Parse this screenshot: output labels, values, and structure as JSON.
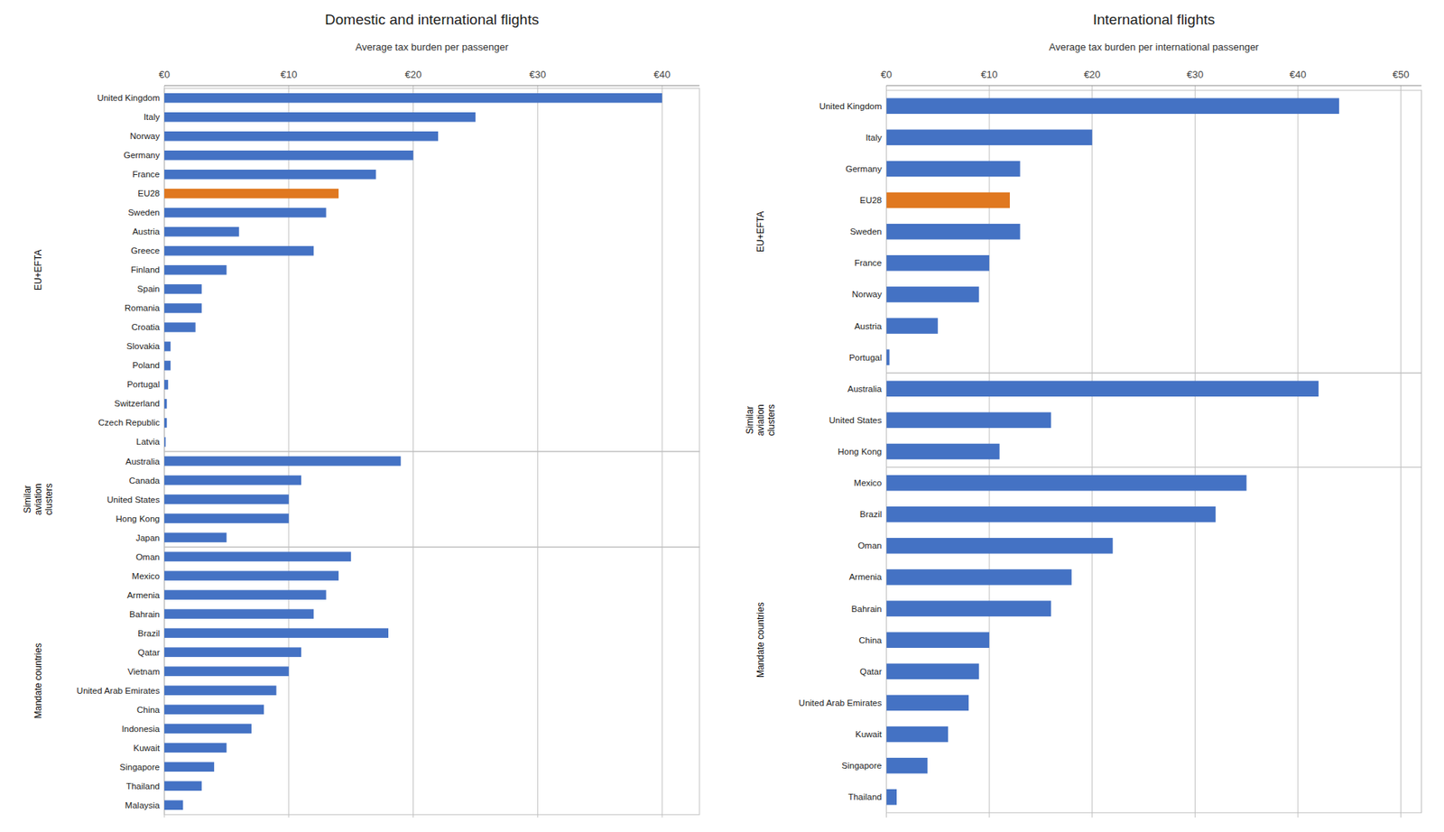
{
  "chart_data": [
    {
      "type": "bar",
      "orientation": "horizontal",
      "grid": true,
      "title": "Domestic and international flights",
      "xlabel": "Average tax burden per passenger",
      "xlim": [
        0,
        43
      ],
      "xticks": [
        {
          "value": 0,
          "label": "€0"
        },
        {
          "value": 10,
          "label": "€10"
        },
        {
          "value": 20,
          "label": "€20"
        },
        {
          "value": 30,
          "label": "€30"
        },
        {
          "value": 40,
          "label": "€40"
        }
      ],
      "categories": [
        "United Kingdom",
        "Italy",
        "Norway",
        "Germany",
        "France",
        "EU28",
        "Sweden",
        "Austria",
        "Greece",
        "Finland",
        "Spain",
        "Romania",
        "Croatia",
        "Slovakia",
        "Poland",
        "Portugal",
        "Switzerland",
        "Czech Republic",
        "Latvia",
        "Australia",
        "Canada",
        "United States",
        "Hong Kong",
        "Japan",
        "Oman",
        "Mexico",
        "Armenia",
        "Bahrain",
        "Brazil",
        "Qatar",
        "Vietnam",
        "United Arab Emirates",
        "China",
        "Indonesia",
        "Kuwait",
        "Singapore",
        "Thailand",
        "Malaysia"
      ],
      "values": [
        40,
        25,
        22,
        20,
        17,
        14,
        13,
        6,
        12,
        5,
        3,
        3,
        2.5,
        0.5,
        0.5,
        0.3,
        0.2,
        0.2,
        0.1,
        19,
        11,
        10,
        10,
        5,
        15,
        14,
        13,
        12,
        18,
        11,
        10,
        9,
        8,
        7,
        5,
        4,
        3,
        1.5
      ],
      "colors": [
        "#4472C4",
        "#4472C4",
        "#4472C4",
        "#4472C4",
        "#4472C4",
        "#E07820",
        "#4472C4",
        "#4472C4",
        "#4472C4",
        "#4472C4",
        "#4472C4",
        "#4472C4",
        "#4472C4",
        "#4472C4",
        "#4472C4",
        "#4472C4",
        "#4472C4",
        "#4472C4",
        "#4472C4",
        "#4472C4",
        "#4472C4",
        "#4472C4",
        "#4472C4",
        "#4472C4",
        "#4472C4",
        "#4472C4",
        "#4472C4",
        "#4472C4",
        "#4472C4",
        "#4472C4",
        "#4472C4",
        "#4472C4",
        "#4472C4",
        "#4472C4",
        "#4472C4",
        "#4472C4",
        "#4472C4",
        "#4472C4"
      ],
      "groups": [
        {
          "label": "EU+EFTA",
          "start": 0,
          "end": 18
        },
        {
          "label": "Similar\naviation\nclusters",
          "start": 19,
          "end": 23
        },
        {
          "label": "Mandate countries",
          "start": 24,
          "end": 37
        }
      ]
    },
    {
      "type": "bar",
      "orientation": "horizontal",
      "grid": true,
      "title": "International flights",
      "xlabel": "Average tax burden per international passenger",
      "xlim": [
        0,
        52
      ],
      "xticks": [
        {
          "value": 0,
          "label": "€0"
        },
        {
          "value": 10,
          "label": "€10"
        },
        {
          "value": 20,
          "label": "€20"
        },
        {
          "value": 30,
          "label": "€30"
        },
        {
          "value": 40,
          "label": "€40"
        },
        {
          "value": 50,
          "label": "€50"
        }
      ],
      "categories": [
        "United Kingdom",
        "Italy",
        "Germany",
        "EU28",
        "Sweden",
        "France",
        "Norway",
        "Austria",
        "Portugal",
        "Australia",
        "United States",
        "Hong Kong",
        "Mexico",
        "Brazil",
        "Oman",
        "Armenia",
        "Bahrain",
        "China",
        "Qatar",
        "United Arab Emirates",
        "Kuwait",
        "Singapore",
        "Thailand"
      ],
      "values": [
        44,
        20,
        13,
        12,
        13,
        10,
        9,
        5,
        0.3,
        42,
        16,
        11,
        35,
        32,
        22,
        18,
        16,
        10,
        9,
        8,
        6,
        4,
        1
      ],
      "colors": [
        "#4472C4",
        "#4472C4",
        "#4472C4",
        "#E07820",
        "#4472C4",
        "#4472C4",
        "#4472C4",
        "#4472C4",
        "#4472C4",
        "#4472C4",
        "#4472C4",
        "#4472C4",
        "#4472C4",
        "#4472C4",
        "#4472C4",
        "#4472C4",
        "#4472C4",
        "#4472C4",
        "#4472C4",
        "#4472C4",
        "#4472C4",
        "#4472C4",
        "#4472C4"
      ],
      "groups": [
        {
          "label": "EU+EFTA",
          "start": 0,
          "end": 8
        },
        {
          "label": "Similar\naviation\nclusters",
          "start": 9,
          "end": 11
        },
        {
          "label": "Mandate countries",
          "start": 12,
          "end": 22
        }
      ]
    }
  ]
}
